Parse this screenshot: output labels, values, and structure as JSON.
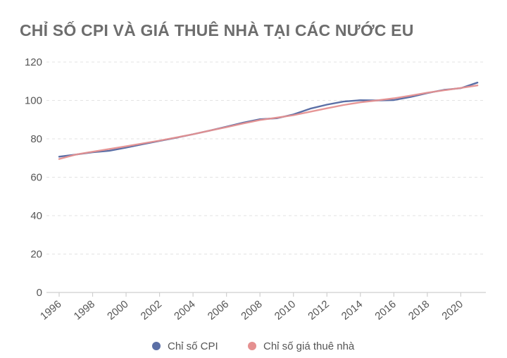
{
  "chart_data": {
    "type": "line",
    "title": "CHỈ SỐ CPI VÀ GIÁ THUÊ NHÀ TẠI CÁC NƯỚC EU",
    "xlabel": "",
    "ylabel": "",
    "x": [
      1996,
      1997,
      1998,
      1999,
      2000,
      2001,
      2002,
      2003,
      2004,
      2005,
      2006,
      2007,
      2008,
      2009,
      2010,
      2011,
      2012,
      2013,
      2014,
      2015,
      2016,
      2017,
      2018,
      2019,
      2020,
      2021
    ],
    "x_ticks": [
      "1996",
      "1998",
      "2000",
      "2002",
      "2004",
      "2006",
      "2008",
      "2010",
      "2012",
      "2014",
      "2016",
      "2018",
      "2020"
    ],
    "y_ticks": [
      "0",
      "20",
      "40",
      "60",
      "80",
      "100",
      "120"
    ],
    "ylim": [
      0,
      120
    ],
    "xlim": [
      1996,
      2021.5
    ],
    "grid": true,
    "legend_position": "bottom",
    "series": [
      {
        "name": "Chỉ số CPI",
        "color": "#5b6fa6",
        "values": [
          70.7,
          71.8,
          73.0,
          73.8,
          75.4,
          77.2,
          78.9,
          80.6,
          82.4,
          84.3,
          86.3,
          88.4,
          90.2,
          90.7,
          92.7,
          95.7,
          97.8,
          99.4,
          100.1,
          100.0,
          100.2,
          101.8,
          103.8,
          105.5,
          106.4,
          109.3
        ]
      },
      {
        "name": "Chỉ số giá thuê nhà",
        "color": "#e59090",
        "values": [
          69.5,
          71.8,
          73.3,
          74.7,
          76.1,
          77.6,
          79.1,
          80.7,
          82.4,
          84.3,
          86.1,
          88.0,
          89.8,
          91.0,
          92.3,
          94.1,
          95.9,
          97.6,
          99.0,
          100.0,
          101.1,
          102.5,
          104.0,
          105.3,
          106.5,
          107.8
        ]
      }
    ]
  }
}
